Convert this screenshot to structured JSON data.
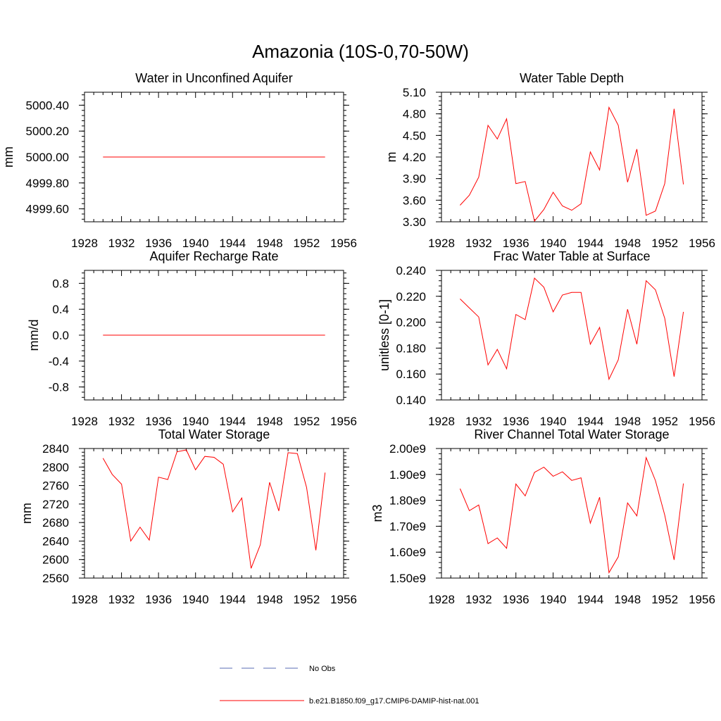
{
  "title": "Amazonia (10S-0,70-50W)",
  "colors": {
    "model": "#ff0000",
    "obs": "#5a6bb5"
  },
  "legend": [
    {
      "label": "No Obs",
      "style": "dashed",
      "color": "#5a6bb5"
    },
    {
      "label": "b.e21.B1850.f09_g17.CMIP6-DAMIP-hist-nat.001",
      "style": "solid",
      "color": "#ff0000"
    }
  ],
  "chart_data": [
    {
      "type": "line",
      "title": "Water in Unconfined Aquifer",
      "ylabel": "mm",
      "xlim": [
        1928,
        1956
      ],
      "ylim": [
        4999.5,
        5000.5
      ],
      "xticks": [
        "1928",
        "1932",
        "1936",
        "1940",
        "1944",
        "1948",
        "1952",
        "1956"
      ],
      "yticks": [
        {
          "value": 4999.6,
          "label": "4999.60"
        },
        {
          "value": 4999.8,
          "label": "4999.80"
        },
        {
          "value": 5000.0,
          "label": "5000.00"
        },
        {
          "value": 5000.2,
          "label": "5000.20"
        },
        {
          "value": 5000.4,
          "label": "5000.40"
        }
      ],
      "x": [
        1930,
        1931,
        1932,
        1933,
        1934,
        1935,
        1936,
        1937,
        1938,
        1939,
        1940,
        1941,
        1942,
        1943,
        1944,
        1945,
        1946,
        1947,
        1948,
        1949,
        1950,
        1951,
        1952,
        1953,
        1954
      ],
      "values": [
        5000,
        5000,
        5000,
        5000,
        5000,
        5000,
        5000,
        5000,
        5000,
        5000,
        5000,
        5000,
        5000,
        5000,
        5000,
        5000,
        5000,
        5000,
        5000,
        5000,
        5000,
        5000,
        5000,
        5000,
        5000
      ]
    },
    {
      "type": "line",
      "title": "Water Table Depth",
      "ylabel": "m",
      "xlim": [
        1928,
        1956
      ],
      "ylim": [
        3.3,
        5.1
      ],
      "xticks": [
        "1928",
        "1932",
        "1936",
        "1940",
        "1944",
        "1948",
        "1952",
        "1956"
      ],
      "yticks": [
        {
          "value": 3.3,
          "label": "3.30"
        },
        {
          "value": 3.6,
          "label": "3.60"
        },
        {
          "value": 3.9,
          "label": "3.90"
        },
        {
          "value": 4.2,
          "label": "4.20"
        },
        {
          "value": 4.5,
          "label": "4.50"
        },
        {
          "value": 4.8,
          "label": "4.80"
        },
        {
          "value": 5.1,
          "label": "5.10"
        }
      ],
      "x": [
        1930,
        1931,
        1932,
        1933,
        1934,
        1935,
        1936,
        1937,
        1938,
        1939,
        1940,
        1941,
        1942,
        1943,
        1944,
        1945,
        1946,
        1947,
        1948,
        1949,
        1950,
        1951,
        1952,
        1953,
        1954
      ],
      "values": [
        3.53,
        3.67,
        3.92,
        4.64,
        4.45,
        4.73,
        3.83,
        3.86,
        3.31,
        3.47,
        3.71,
        3.52,
        3.46,
        3.55,
        4.27,
        4.02,
        4.89,
        4.64,
        3.85,
        4.31,
        3.39,
        3.45,
        3.83,
        4.87,
        3.82
      ]
    },
    {
      "type": "line",
      "title": "Aquifer Recharge Rate",
      "ylabel": "mm/d",
      "xlim": [
        1928,
        1956
      ],
      "ylim": [
        -1.0,
        1.0
      ],
      "xticks": [
        "1928",
        "1932",
        "1936",
        "1940",
        "1944",
        "1948",
        "1952",
        "1956"
      ],
      "yticks": [
        {
          "value": -0.8,
          "label": "-0.8"
        },
        {
          "value": -0.4,
          "label": "-0.4"
        },
        {
          "value": 0.0,
          "label": "0.0"
        },
        {
          "value": 0.4,
          "label": "0.4"
        },
        {
          "value": 0.8,
          "label": "0.8"
        }
      ],
      "x": [
        1930,
        1931,
        1932,
        1933,
        1934,
        1935,
        1936,
        1937,
        1938,
        1939,
        1940,
        1941,
        1942,
        1943,
        1944,
        1945,
        1946,
        1947,
        1948,
        1949,
        1950,
        1951,
        1952,
        1953,
        1954
      ],
      "values": [
        0,
        0,
        0,
        0,
        0,
        0,
        0,
        0,
        0,
        0,
        0,
        0,
        0,
        0,
        0,
        0,
        0,
        0,
        0,
        0,
        0,
        0,
        0,
        0,
        0
      ]
    },
    {
      "type": "line",
      "title": "Frac Water Table at Surface",
      "ylabel": "unitless [0-1]",
      "xlim": [
        1928,
        1956
      ],
      "ylim": [
        0.14,
        0.24
      ],
      "xticks": [
        "1928",
        "1932",
        "1936",
        "1940",
        "1944",
        "1948",
        "1952",
        "1956"
      ],
      "yticks": [
        {
          "value": 0.14,
          "label": "0.140"
        },
        {
          "value": 0.16,
          "label": "0.160"
        },
        {
          "value": 0.18,
          "label": "0.180"
        },
        {
          "value": 0.2,
          "label": "0.200"
        },
        {
          "value": 0.22,
          "label": "0.220"
        },
        {
          "value": 0.24,
          "label": "0.240"
        }
      ],
      "x": [
        1930,
        1931,
        1932,
        1933,
        1934,
        1935,
        1936,
        1937,
        1938,
        1939,
        1940,
        1941,
        1942,
        1943,
        1944,
        1945,
        1946,
        1947,
        1948,
        1949,
        1950,
        1951,
        1952,
        1953,
        1954
      ],
      "values": [
        0.218,
        0.211,
        0.204,
        0.167,
        0.179,
        0.164,
        0.206,
        0.202,
        0.234,
        0.227,
        0.208,
        0.221,
        0.223,
        0.223,
        0.183,
        0.196,
        0.156,
        0.171,
        0.21,
        0.183,
        0.232,
        0.225,
        0.203,
        0.158,
        0.208
      ]
    },
    {
      "type": "line",
      "title": "Total Water Storage",
      "ylabel": "mm",
      "xlim": [
        1928,
        1956
      ],
      "ylim": [
        2560,
        2840
      ],
      "xticks": [
        "1928",
        "1932",
        "1936",
        "1940",
        "1944",
        "1948",
        "1952",
        "1956"
      ],
      "yticks": [
        {
          "value": 2560,
          "label": "2560"
        },
        {
          "value": 2600,
          "label": "2600"
        },
        {
          "value": 2640,
          "label": "2640"
        },
        {
          "value": 2680,
          "label": "2680"
        },
        {
          "value": 2720,
          "label": "2720"
        },
        {
          "value": 2760,
          "label": "2760"
        },
        {
          "value": 2800,
          "label": "2800"
        },
        {
          "value": 2840,
          "label": "2840"
        }
      ],
      "x": [
        1930,
        1931,
        1932,
        1933,
        1934,
        1935,
        1936,
        1937,
        1938,
        1939,
        1940,
        1941,
        1942,
        1943,
        1944,
        1945,
        1946,
        1947,
        1948,
        1949,
        1950,
        1951,
        1952,
        1953,
        1954
      ],
      "values": [
        2819,
        2784,
        2763,
        2640,
        2670,
        2642,
        2778,
        2773,
        2833,
        2837,
        2794,
        2823,
        2821,
        2806,
        2703,
        2733,
        2581,
        2632,
        2767,
        2705,
        2831,
        2829,
        2756,
        2620,
        2788
      ]
    },
    {
      "type": "line",
      "title": "River Channel Total Water Storage",
      "ylabel": "m3",
      "xlim": [
        1928,
        1956
      ],
      "ylim": [
        1500000000.0,
        2000000000.0
      ],
      "xticks": [
        "1928",
        "1932",
        "1936",
        "1940",
        "1944",
        "1948",
        "1952",
        "1956"
      ],
      "yticks": [
        {
          "value": 1500000000.0,
          "label": "1.50e9"
        },
        {
          "value": 1600000000.0,
          "label": "1.60e9"
        },
        {
          "value": 1700000000.0,
          "label": "1.70e9"
        },
        {
          "value": 1800000000.0,
          "label": "1.80e9"
        },
        {
          "value": 1900000000.0,
          "label": "1.90e9"
        },
        {
          "value": 2000000000.0,
          "label": "2.00e9"
        }
      ],
      "x": [
        1930,
        1931,
        1932,
        1933,
        1934,
        1935,
        1936,
        1937,
        1938,
        1939,
        1940,
        1941,
        1942,
        1943,
        1944,
        1945,
        1946,
        1947,
        1948,
        1949,
        1950,
        1951,
        1952,
        1953,
        1954
      ],
      "values": [
        1845000000.0,
        1760000000.0,
        1782000000.0,
        1633000000.0,
        1655000000.0,
        1615000000.0,
        1863000000.0,
        1817000000.0,
        1908000000.0,
        1928000000.0,
        1893000000.0,
        1910000000.0,
        1877000000.0,
        1887000000.0,
        1712000000.0,
        1812000000.0,
        1521000000.0,
        1582000000.0,
        1790000000.0,
        1740000000.0,
        1965000000.0,
        1876000000.0,
        1743000000.0,
        1570000000.0,
        1865000000.0
      ]
    }
  ]
}
